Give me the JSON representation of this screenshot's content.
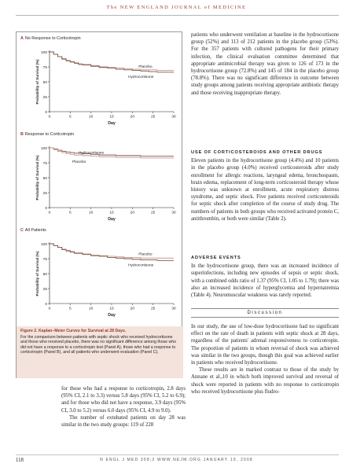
{
  "running_head": {
    "pre": "The ",
    "journal": "NEW ENGLAND JOURNAL of MEDICINE"
  },
  "figure": {
    "caption_title": "Figure 2. Kaplan–Meier Curves for Survival at 28 Days.",
    "caption_body": "For the comparison between patients with septic shock who received hydrocortisone and those who received placebo, there was no significant difference among those who did not have a response to a corticotropin test (Panel A), those who had a response to corticotropin (Panel B), and all patients who underwent evaluation (Panel C).",
    "panels": [
      {
        "letter": "A",
        "title": "No Response to Corticotropin",
        "ylabel": "Probability of Survival (%)",
        "xlabel": "Day",
        "label_top": "Placebo",
        "label_bottom": "Hydrocortisone"
      },
      {
        "letter": "B",
        "title": "Response to Corticotropin",
        "ylabel": "Probability of Survival (%)",
        "xlabel": "Day",
        "label_top": "Hydrocortisone",
        "label_bottom": "Placebo"
      },
      {
        "letter": "C",
        "title": "All Patients",
        "ylabel": "Probability of Survival (%)",
        "xlabel": "Day",
        "label_top": "Placebo",
        "label_bottom": "Hydrocortisone"
      }
    ]
  },
  "chart_data": [
    {
      "type": "line",
      "title": "No Response to Corticotropin",
      "xlabel": "Day",
      "ylabel": "Probability of Survival (%)",
      "xlim": [
        0,
        30
      ],
      "ylim": [
        0,
        100
      ],
      "xticks": [
        "0",
        "5",
        "10",
        "15",
        "20",
        "25",
        "30"
      ],
      "yticks": [
        "0",
        "25",
        "50",
        "75",
        "100"
      ],
      "series": [
        {
          "name": "Placebo",
          "x": [
            0,
            1,
            2,
            3,
            4,
            5,
            6,
            7,
            8,
            10,
            12,
            14,
            16,
            18,
            20,
            22,
            24,
            26,
            28
          ],
          "values": [
            100,
            96,
            92,
            89,
            86,
            84,
            82,
            80,
            79,
            77,
            75,
            74,
            73,
            72,
            71,
            70,
            70,
            69,
            69
          ]
        },
        {
          "name": "Hydrocortisone",
          "x": [
            0,
            1,
            2,
            3,
            4,
            5,
            6,
            7,
            8,
            10,
            12,
            14,
            16,
            18,
            20,
            22,
            24,
            26,
            28
          ],
          "values": [
            100,
            96,
            92,
            88,
            85,
            83,
            81,
            79,
            78,
            76,
            74,
            73,
            71,
            70,
            69,
            68,
            67,
            66,
            66
          ]
        }
      ]
    },
    {
      "type": "line",
      "title": "Response to Corticotropin",
      "xlabel": "Day",
      "ylabel": "Probability of Survival (%)",
      "xlim": [
        0,
        30
      ],
      "ylim": [
        0,
        100
      ],
      "xticks": [
        "0",
        "5",
        "10",
        "15",
        "20",
        "25",
        "30"
      ],
      "yticks": [
        "0",
        "25",
        "50",
        "75",
        "100"
      ],
      "series": [
        {
          "name": "Hydrocortisone",
          "x": [
            0,
            1,
            2,
            3,
            4,
            5,
            6,
            8,
            10,
            12,
            14,
            16,
            18,
            20,
            22,
            24,
            26,
            28
          ],
          "values": [
            100,
            98,
            96,
            94,
            93,
            92,
            91,
            90,
            89,
            88,
            88,
            87,
            87,
            87,
            86,
            86,
            86,
            86
          ]
        },
        {
          "name": "Placebo",
          "x": [
            0,
            1,
            2,
            3,
            4,
            5,
            6,
            8,
            10,
            12,
            14,
            16,
            18,
            20,
            22,
            24,
            26,
            28
          ],
          "values": [
            100,
            97,
            94,
            92,
            90,
            89,
            88,
            87,
            86,
            85,
            85,
            84,
            84,
            84,
            83,
            83,
            83,
            83
          ]
        }
      ]
    },
    {
      "type": "line",
      "title": "All Patients",
      "xlabel": "Day",
      "ylabel": "Probability of Survival (%)",
      "xlim": [
        0,
        30
      ],
      "ylim": [
        0,
        100
      ],
      "xticks": [
        "0",
        "5",
        "10",
        "15",
        "20",
        "25",
        "30"
      ],
      "yticks": [
        "0",
        "25",
        "50",
        "75",
        "100"
      ],
      "series": [
        {
          "name": "Placebo",
          "x": [
            0,
            1,
            2,
            3,
            4,
            5,
            6,
            8,
            10,
            12,
            14,
            16,
            18,
            20,
            22,
            24,
            26,
            28
          ],
          "values": [
            100,
            97,
            94,
            91,
            89,
            87,
            85,
            83,
            81,
            80,
            79,
            78,
            77,
            77,
            76,
            76,
            76,
            76
          ]
        },
        {
          "name": "Hydrocortisone",
          "x": [
            0,
            1,
            2,
            3,
            4,
            5,
            6,
            8,
            10,
            12,
            14,
            16,
            18,
            20,
            22,
            24,
            26,
            28
          ],
          "values": [
            100,
            97,
            94,
            90,
            88,
            86,
            84,
            82,
            80,
            79,
            77,
            76,
            75,
            74,
            73,
            73,
            72,
            72
          ]
        }
      ]
    }
  ],
  "left_col": {
    "p1": "for those who had a response to corticotropin, 2.8 days (95% CI, 2.1 to 3.3) versus 5.8 days (95% CI, 5.2 to 6.9); and for those who did not have a response, 3.9 days (95% CI, 3.0 to 5.2) versus 6.0 days (95% CI, 4.9 to 9.0).",
    "p2": "The number of extubated patients on day 28 was similar in the two study groups: 119 of 228"
  },
  "right_col": {
    "p1": "patients who underwent ventilation at baseline in the hydrocortisone group (52%) and 113 of 212 patients in the placebo group (53%). For the 357 patients with cultured pathogens for their primary infection, the clinical evaluation committee determined that appropriate antimicrobial therapy was given to 126 of 173 in the hydrocortisone group (72.8%) and 145 of 184 in the placebo group (78.8%). There was no significant difference in outcome between study groups among patients receiving appropriate antibiotic therapy and those receiving inappropriate therapy.",
    "head2": "Use of Corticosteroids and Other Drugs",
    "p2": "Eleven patients in the hydrocortisone group (4.4%) and 10 patients in the placebo group (4.0%) received corticosteroids after study enrollment for allergic reactions, laryngeal edema, bronchospasm, brain edema, replacement of long-term corticosteroid therapy whose history was unknown at enrollment, acute respiratory distress syndrome, and septic shock. Five patients received corticosteroids for septic shock after completion of the course of study drug. The numbers of patients in both groups who received activated protein C, antithrombin, or both were similar (Table 2).",
    "head3": "Adverse Events",
    "p3": "In the hydrocortisone group, there was an increased incidence of superinfections, including new episodes of sepsis or septic shock, with a combined odds ratio of 1.37 (95% CI, 1.05 to 1.79); there was also an increased incidence of hyperglycemia and hypernatremia (Table 4). Neuromuscular weakness was rarely reported.",
    "discussion_head": "Discussion",
    "p4": "In our study, the use of low-dose hydrocortisone had no significant effect on the rate of death in patients with septic shock at 28 days, regardless of the patients' adrenal responsiveness to corticotropin. The proportion of patients in whom reversal of shock was achieved was similar in the two groups, though this goal was achieved earlier in patients who received hydrocortisone.",
    "p5": "These results are in marked contrast to those of the study by Annane et al.,10 in which both improved survival and reversal of shock were reported in patients with no response to corticotropin who received hydrocortisone plus fludro-"
  },
  "footer": {
    "page": "118",
    "text": "N ENGL J MED 358;2   WWW.NEJM.ORG   JANUARY 10, 2008"
  },
  "colors": {
    "placebo_line": "#c49a8a",
    "hydrocortisone_line": "#7a5548",
    "accent": "#9a3a2e",
    "caption_bg": "#f3e3dc"
  }
}
